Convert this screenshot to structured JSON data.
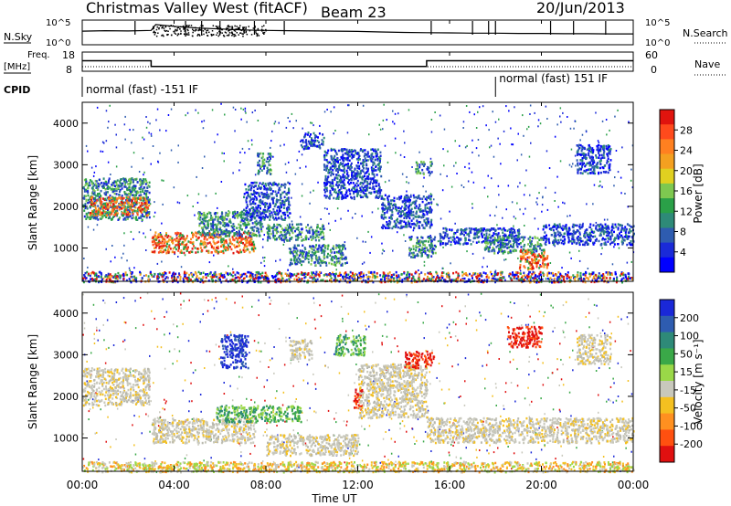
{
  "header": {
    "title": "Christmas Valley West (fitACF)",
    "beam": "Beam 23",
    "date": "20/Jun/2013"
  },
  "summary": {
    "nsky_label": "N.Sky",
    "nsearch_label": "N.Search",
    "exp_ticks": [
      "10^5",
      "10^0"
    ],
    "freq_label_1": "Freq.",
    "freq_label_2": "[MHz]",
    "freq_ticks": [
      "18",
      "8"
    ],
    "nave_label": "Nave",
    "nave_ticks": [
      "60",
      "0"
    ],
    "cpid_label": "CPID",
    "cpid_segments": [
      {
        "label": "normal (fast) -151 IF",
        "start_hour": 0,
        "end_hour": 18
      },
      {
        "label": "normal (fast) 151 IF",
        "start_hour": 18,
        "end_hour": 24
      }
    ],
    "freq_series": {
      "hours": [
        0,
        3,
        3,
        15,
        15,
        24
      ],
      "mhz": [
        13.5,
        13.5,
        10.5,
        10.5,
        13.5,
        13.5
      ]
    },
    "noise_series": {
      "hours": [
        0,
        1,
        2,
        3,
        3.2,
        4,
        5,
        6,
        7,
        8,
        9,
        10,
        11,
        12,
        13,
        14,
        15,
        16,
        17,
        18,
        19,
        20,
        21,
        22,
        23,
        24
      ],
      "value": [
        0.55,
        0.57,
        0.56,
        0.58,
        0.82,
        0.75,
        0.68,
        0.64,
        0.6,
        0.58,
        0.57,
        0.56,
        0.55,
        0.54,
        0.52,
        0.5,
        0.49,
        0.48,
        0.47,
        0.47,
        0.46,
        0.46,
        0.45,
        0.45,
        0.44,
        0.44
      ]
    },
    "spikes_hours": [
      2.3,
      4.5,
      5.2,
      6.0,
      7.5,
      8.8,
      15.2,
      17.0,
      17.7,
      18.0,
      20.4,
      21.4,
      22.8
    ]
  },
  "chart_data": [
    {
      "type": "heatmap",
      "name": "power",
      "xlabel": "",
      "ylabel": "Slant Range [km]",
      "xlim": [
        0,
        24
      ],
      "ylim": [
        200,
        4500
      ],
      "yticks": [
        1000,
        2000,
        3000,
        4000
      ],
      "colorbar": {
        "label": "Power [dB]",
        "ticks": [
          "28",
          "24",
          "20",
          "16",
          "12",
          "8",
          "4"
        ],
        "colors": [
          "#e0140e",
          "#ff4a1c",
          "#ff8020",
          "#f4a020",
          "#e0d020",
          "#7ec850",
          "#2aa048",
          "#2e8a78",
          "#2e5cb0",
          "#1a2ad8",
          "#0000ff"
        ]
      },
      "bands": [
        {
          "t0": 0.0,
          "t1": 2.9,
          "r0": 1700,
          "r1": 2700,
          "level": "mid"
        },
        {
          "t0": 0.3,
          "t1": 2.9,
          "r0": 1800,
          "r1": 2250,
          "level": "high"
        },
        {
          "t0": 3.0,
          "t1": 7.5,
          "r0": 900,
          "r1": 1400,
          "level": "high"
        },
        {
          "t0": 5.0,
          "t1": 7.8,
          "r0": 1300,
          "r1": 1900,
          "level": "mid"
        },
        {
          "t0": 7.0,
          "t1": 9.0,
          "r0": 1700,
          "r1": 2600,
          "level": "low"
        },
        {
          "t0": 7.6,
          "t1": 8.2,
          "r0": 2800,
          "r1": 3300,
          "level": "mid"
        },
        {
          "t0": 8.0,
          "t1": 10.5,
          "r0": 1200,
          "r1": 1600,
          "level": "mid"
        },
        {
          "t0": 9.0,
          "t1": 11.5,
          "r0": 600,
          "r1": 1100,
          "level": "mid"
        },
        {
          "t0": 9.5,
          "t1": 10.5,
          "r0": 3400,
          "r1": 3800,
          "level": "low"
        },
        {
          "t0": 10.5,
          "t1": 13.0,
          "r0": 2200,
          "r1": 3400,
          "level": "low"
        },
        {
          "t0": 13.0,
          "t1": 15.2,
          "r0": 1500,
          "r1": 2300,
          "level": "low"
        },
        {
          "t0": 14.2,
          "t1": 15.4,
          "r0": 800,
          "r1": 1300,
          "level": "mid"
        },
        {
          "t0": 14.5,
          "t1": 15.2,
          "r0": 2800,
          "r1": 3100,
          "level": "mid"
        },
        {
          "t0": 15.5,
          "t1": 19.0,
          "r0": 1100,
          "r1": 1500,
          "level": "low"
        },
        {
          "t0": 17.5,
          "t1": 20.0,
          "r0": 900,
          "r1": 1300,
          "level": "mid"
        },
        {
          "t0": 19.0,
          "t1": 20.3,
          "r0": 500,
          "r1": 1000,
          "level": "high"
        },
        {
          "t0": 20.0,
          "t1": 24.0,
          "r0": 1100,
          "r1": 1600,
          "level": "low"
        },
        {
          "t0": 21.5,
          "t1": 23.0,
          "r0": 2800,
          "r1": 3500,
          "level": "low"
        },
        {
          "t0": 0.0,
          "t1": 24.0,
          "r0": 200,
          "r1": 450,
          "level": "mixed"
        }
      ]
    },
    {
      "type": "heatmap",
      "name": "velocity",
      "xlabel": "Time UT",
      "ylabel": "Slant Range [km]",
      "xlim": [
        0,
        24
      ],
      "ylim": [
        200,
        4500
      ],
      "xticks": [
        "00:00",
        "04:00",
        "08:00",
        "12:00",
        "16:00",
        "20:00",
        "00:00"
      ],
      "yticks": [
        1000,
        2000,
        3000,
        4000
      ],
      "colorbar": {
        "label": "Velocity [m s⁻¹]",
        "ticks": [
          "200",
          "100",
          "50",
          "15",
          "-15",
          "-50",
          "-100",
          "-200"
        ],
        "colors": [
          "#1a28d8",
          "#2e5cb0",
          "#2e8a78",
          "#3aa848",
          "#9ad848",
          "#c8c8bc",
          "#f4c020",
          "#ff9020",
          "#ff5010",
          "#e01010"
        ]
      },
      "bands": [
        {
          "t0": 0.0,
          "t1": 2.9,
          "r0": 1800,
          "r1": 2700,
          "level": "gray"
        },
        {
          "t0": 3.0,
          "t1": 7.5,
          "r0": 900,
          "r1": 1500,
          "level": "gray"
        },
        {
          "t0": 6.0,
          "t1": 7.2,
          "r0": 2700,
          "r1": 3500,
          "level": "blue"
        },
        {
          "t0": 5.8,
          "t1": 9.5,
          "r0": 1400,
          "r1": 1800,
          "level": "green"
        },
        {
          "t0": 9.0,
          "t1": 10.0,
          "r0": 2900,
          "r1": 3400,
          "level": "gray"
        },
        {
          "t0": 11.0,
          "t1": 12.3,
          "r0": 3000,
          "r1": 3500,
          "level": "green"
        },
        {
          "t0": 11.8,
          "t1": 12.2,
          "r0": 1700,
          "r1": 2200,
          "level": "red"
        },
        {
          "t0": 12.0,
          "t1": 15.0,
          "r0": 1500,
          "r1": 2800,
          "level": "gray"
        },
        {
          "t0": 8.0,
          "t1": 12.0,
          "r0": 600,
          "r1": 1100,
          "level": "gray"
        },
        {
          "t0": 14.0,
          "t1": 15.3,
          "r0": 2700,
          "r1": 3100,
          "level": "red"
        },
        {
          "t0": 15.0,
          "t1": 24.0,
          "r0": 900,
          "r1": 1500,
          "level": "gray"
        },
        {
          "t0": 18.5,
          "t1": 20.0,
          "r0": 3200,
          "r1": 3700,
          "level": "red"
        },
        {
          "t0": 21.5,
          "t1": 23.0,
          "r0": 2800,
          "r1": 3500,
          "level": "gray"
        },
        {
          "t0": 0.0,
          "t1": 24.0,
          "r0": 200,
          "r1": 450,
          "level": "mixed"
        }
      ]
    }
  ]
}
